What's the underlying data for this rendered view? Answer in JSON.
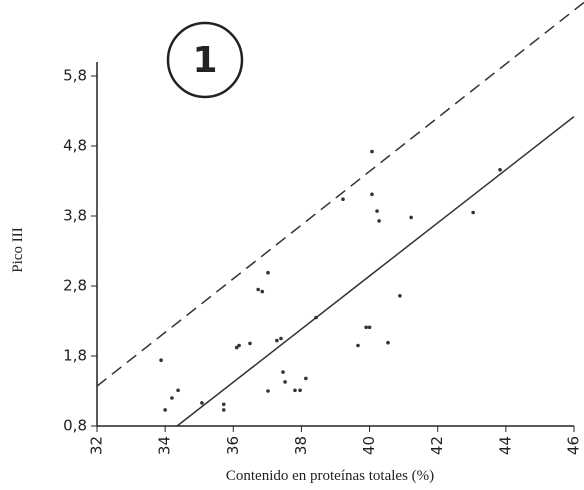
{
  "chart_data": {
    "type": "scatter",
    "annotation": "1",
    "xlabel": "Contenido en proteínas totales (%)",
    "ylabel": "Pico III",
    "xlim": [
      32,
      46
    ],
    "ylim": [
      0.8,
      6.0
    ],
    "xticks": [
      32,
      34,
      36,
      38,
      40,
      42,
      44,
      46
    ],
    "yticks": [
      {
        "value": 0.8,
        "label": "0,8"
      },
      {
        "value": 1.8,
        "label": "1,8"
      },
      {
        "value": 2.8,
        "label": "2,8"
      },
      {
        "value": 3.8,
        "label": "3,8"
      },
      {
        "value": 4.8,
        "label": "4,8"
      },
      {
        "value": 5.8,
        "label": "5,8"
      }
    ],
    "grid": false,
    "series": [
      {
        "type": "scatter",
        "color": "#333333",
        "x": [
          33.88,
          34.0,
          34.2,
          34.38,
          35.08,
          35.72,
          35.72,
          36.1,
          36.17,
          36.49,
          36.73,
          36.85,
          37.02,
          37.02,
          37.28,
          37.4,
          37.46,
          37.52,
          37.81,
          37.96,
          38.13,
          38.43,
          39.22,
          39.66,
          39.9,
          40.0,
          40.07,
          40.07,
          40.22,
          40.28,
          40.54,
          40.89,
          41.22,
          43.04,
          43.83
        ],
        "values": [
          1.74,
          1.03,
          1.2,
          1.31,
          1.13,
          1.11,
          1.03,
          1.92,
          1.95,
          1.98,
          2.75,
          2.72,
          2.99,
          1.3,
          2.02,
          2.05,
          1.57,
          1.43,
          1.31,
          1.31,
          1.48,
          2.35,
          4.04,
          1.95,
          2.21,
          2.21,
          4.72,
          4.11,
          3.87,
          3.73,
          1.99,
          2.66,
          3.78,
          3.85,
          4.46
        ]
      },
      {
        "type": "line",
        "color": "#333333",
        "dashed": false,
        "x": [
          34.35,
          46
        ],
        "values": [
          0.8,
          5.22
        ]
      },
      {
        "type": "line",
        "color": "#333333",
        "dashed": true,
        "x": [
          32,
          46.29
        ],
        "values": [
          1.37,
          6.85
        ]
      }
    ]
  }
}
